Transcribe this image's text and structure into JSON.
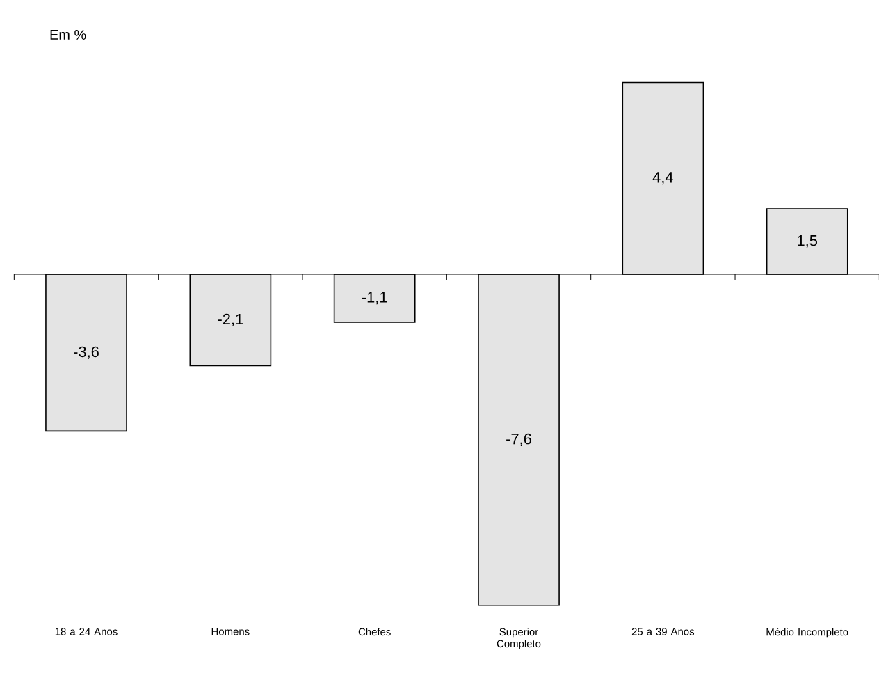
{
  "chart_data": {
    "type": "bar",
    "ylabel": "Em %",
    "categories": [
      "18 a 24 Anos",
      "Homens",
      "Chefes",
      "Superior Completo",
      "25 a 39 Anos",
      "Médio Incompleto"
    ],
    "values": [
      -3.6,
      -2.1,
      -1.1,
      -7.6,
      4.4,
      1.5
    ],
    "value_labels": [
      "-3,6",
      "-2,1",
      "-1,1",
      "-7,6",
      "4,4",
      "1,5"
    ],
    "color": "#e4e4e4",
    "tick_labels": "x"
  }
}
